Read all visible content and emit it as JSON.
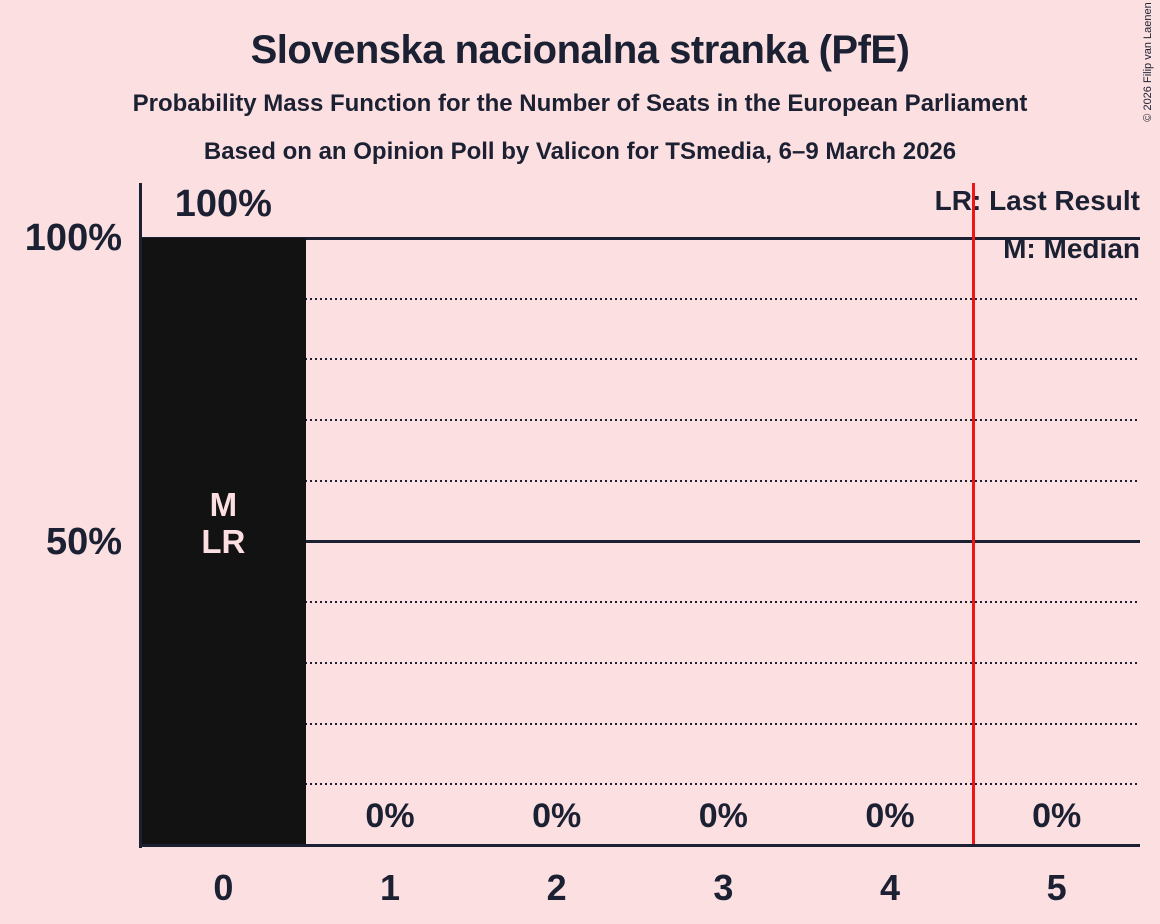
{
  "header": {
    "title": "Slovenska nacionalna stranka (PfE)",
    "subtitle": "Probability Mass Function for the Number of Seats in the European Parliament",
    "poll_details": "Based on an Opinion Poll by Valicon for TSmedia, 6–9 March 2026"
  },
  "copyright": "© 2026 Filip van Laenen",
  "legend": {
    "last_result": "LR: Last Result",
    "median": "M: Median"
  },
  "colors": {
    "background": "#fcdfe0",
    "text": "#1b2133",
    "bar": "#121212",
    "red_line": "#f01414",
    "in_bar_text": "#fcdfe0"
  },
  "chart_data": {
    "type": "bar",
    "title": "Probability Mass Function for the Number of Seats in the European Parliament",
    "categories": [
      "0",
      "1",
      "2",
      "3",
      "4",
      "5"
    ],
    "values": [
      100,
      0,
      0,
      0,
      0,
      0
    ],
    "bar_labels": [
      "100%",
      "0%",
      "0%",
      "0%",
      "0%",
      "0%"
    ],
    "xlabel": "",
    "ylabel": "",
    "ylim": [
      0,
      100
    ],
    "y_tick_labels": [
      {
        "label": "100%",
        "value": 100
      },
      {
        "label": "50%",
        "value": 50
      }
    ],
    "gridlines_pct": [
      10,
      20,
      30,
      40,
      50,
      60,
      70,
      80,
      90,
      100
    ],
    "solid_gridlines_pct": [
      50,
      100
    ],
    "grid": true,
    "legend_position": "top-right",
    "red_vertical_line_x": 4.5,
    "median_seats": 0,
    "last_result_seats": 0,
    "annotations": [
      {
        "category": "0",
        "lines": [
          "M",
          "LR"
        ],
        "center_y_pct": 53
      }
    ]
  }
}
